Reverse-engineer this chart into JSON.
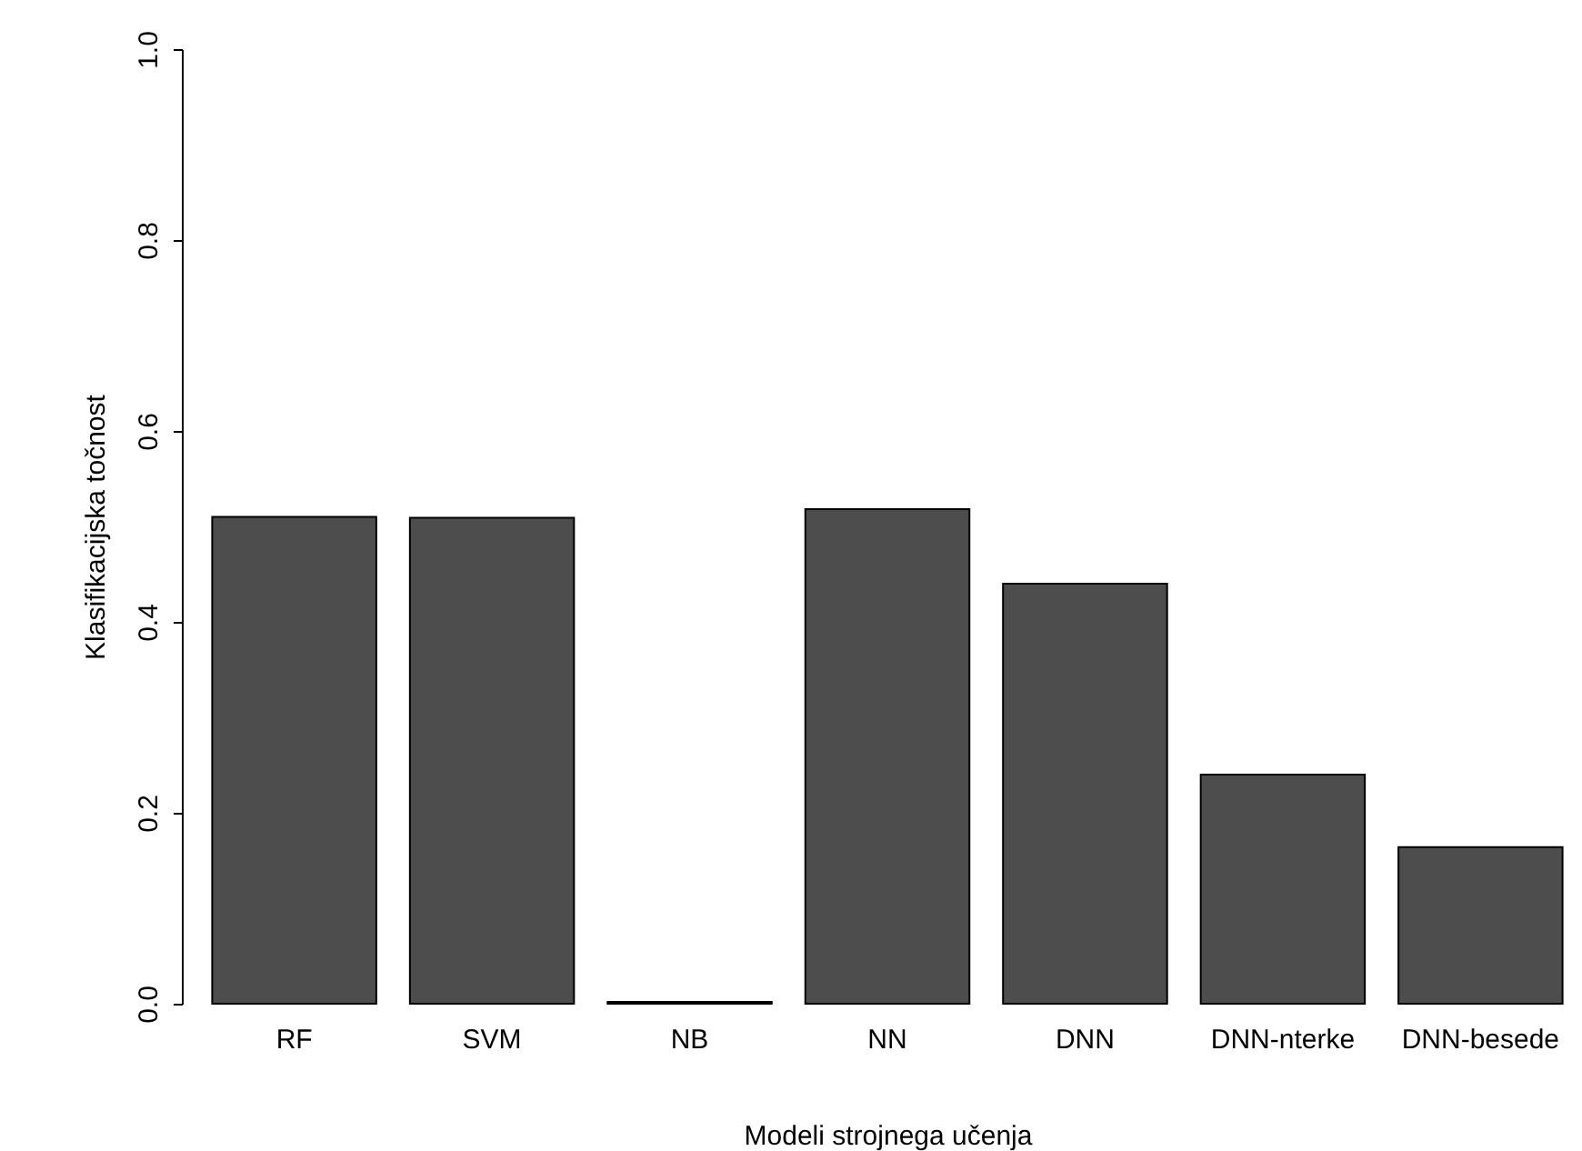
{
  "chart_data": {
    "type": "bar",
    "xlabel": "Modeli strojnega učenja",
    "ylabel": "Klasifikacijska točnost",
    "categories": [
      "RF",
      "SVM",
      "NB",
      "NN",
      "DNN",
      "DNN-nterke",
      "DNN-besede"
    ],
    "values": [
      0.51,
      0.509,
      0.002,
      0.518,
      0.44,
      0.24,
      0.164
    ],
    "color": "#4d4d4d",
    "ylim": [
      0,
      1
    ],
    "yticks": [
      {
        "value": 0,
        "label": "0.0"
      },
      0.2,
      0.4,
      0.6,
      0.8,
      {
        "value": 1,
        "label": "1.0"
      }
    ],
    "grid": false
  }
}
